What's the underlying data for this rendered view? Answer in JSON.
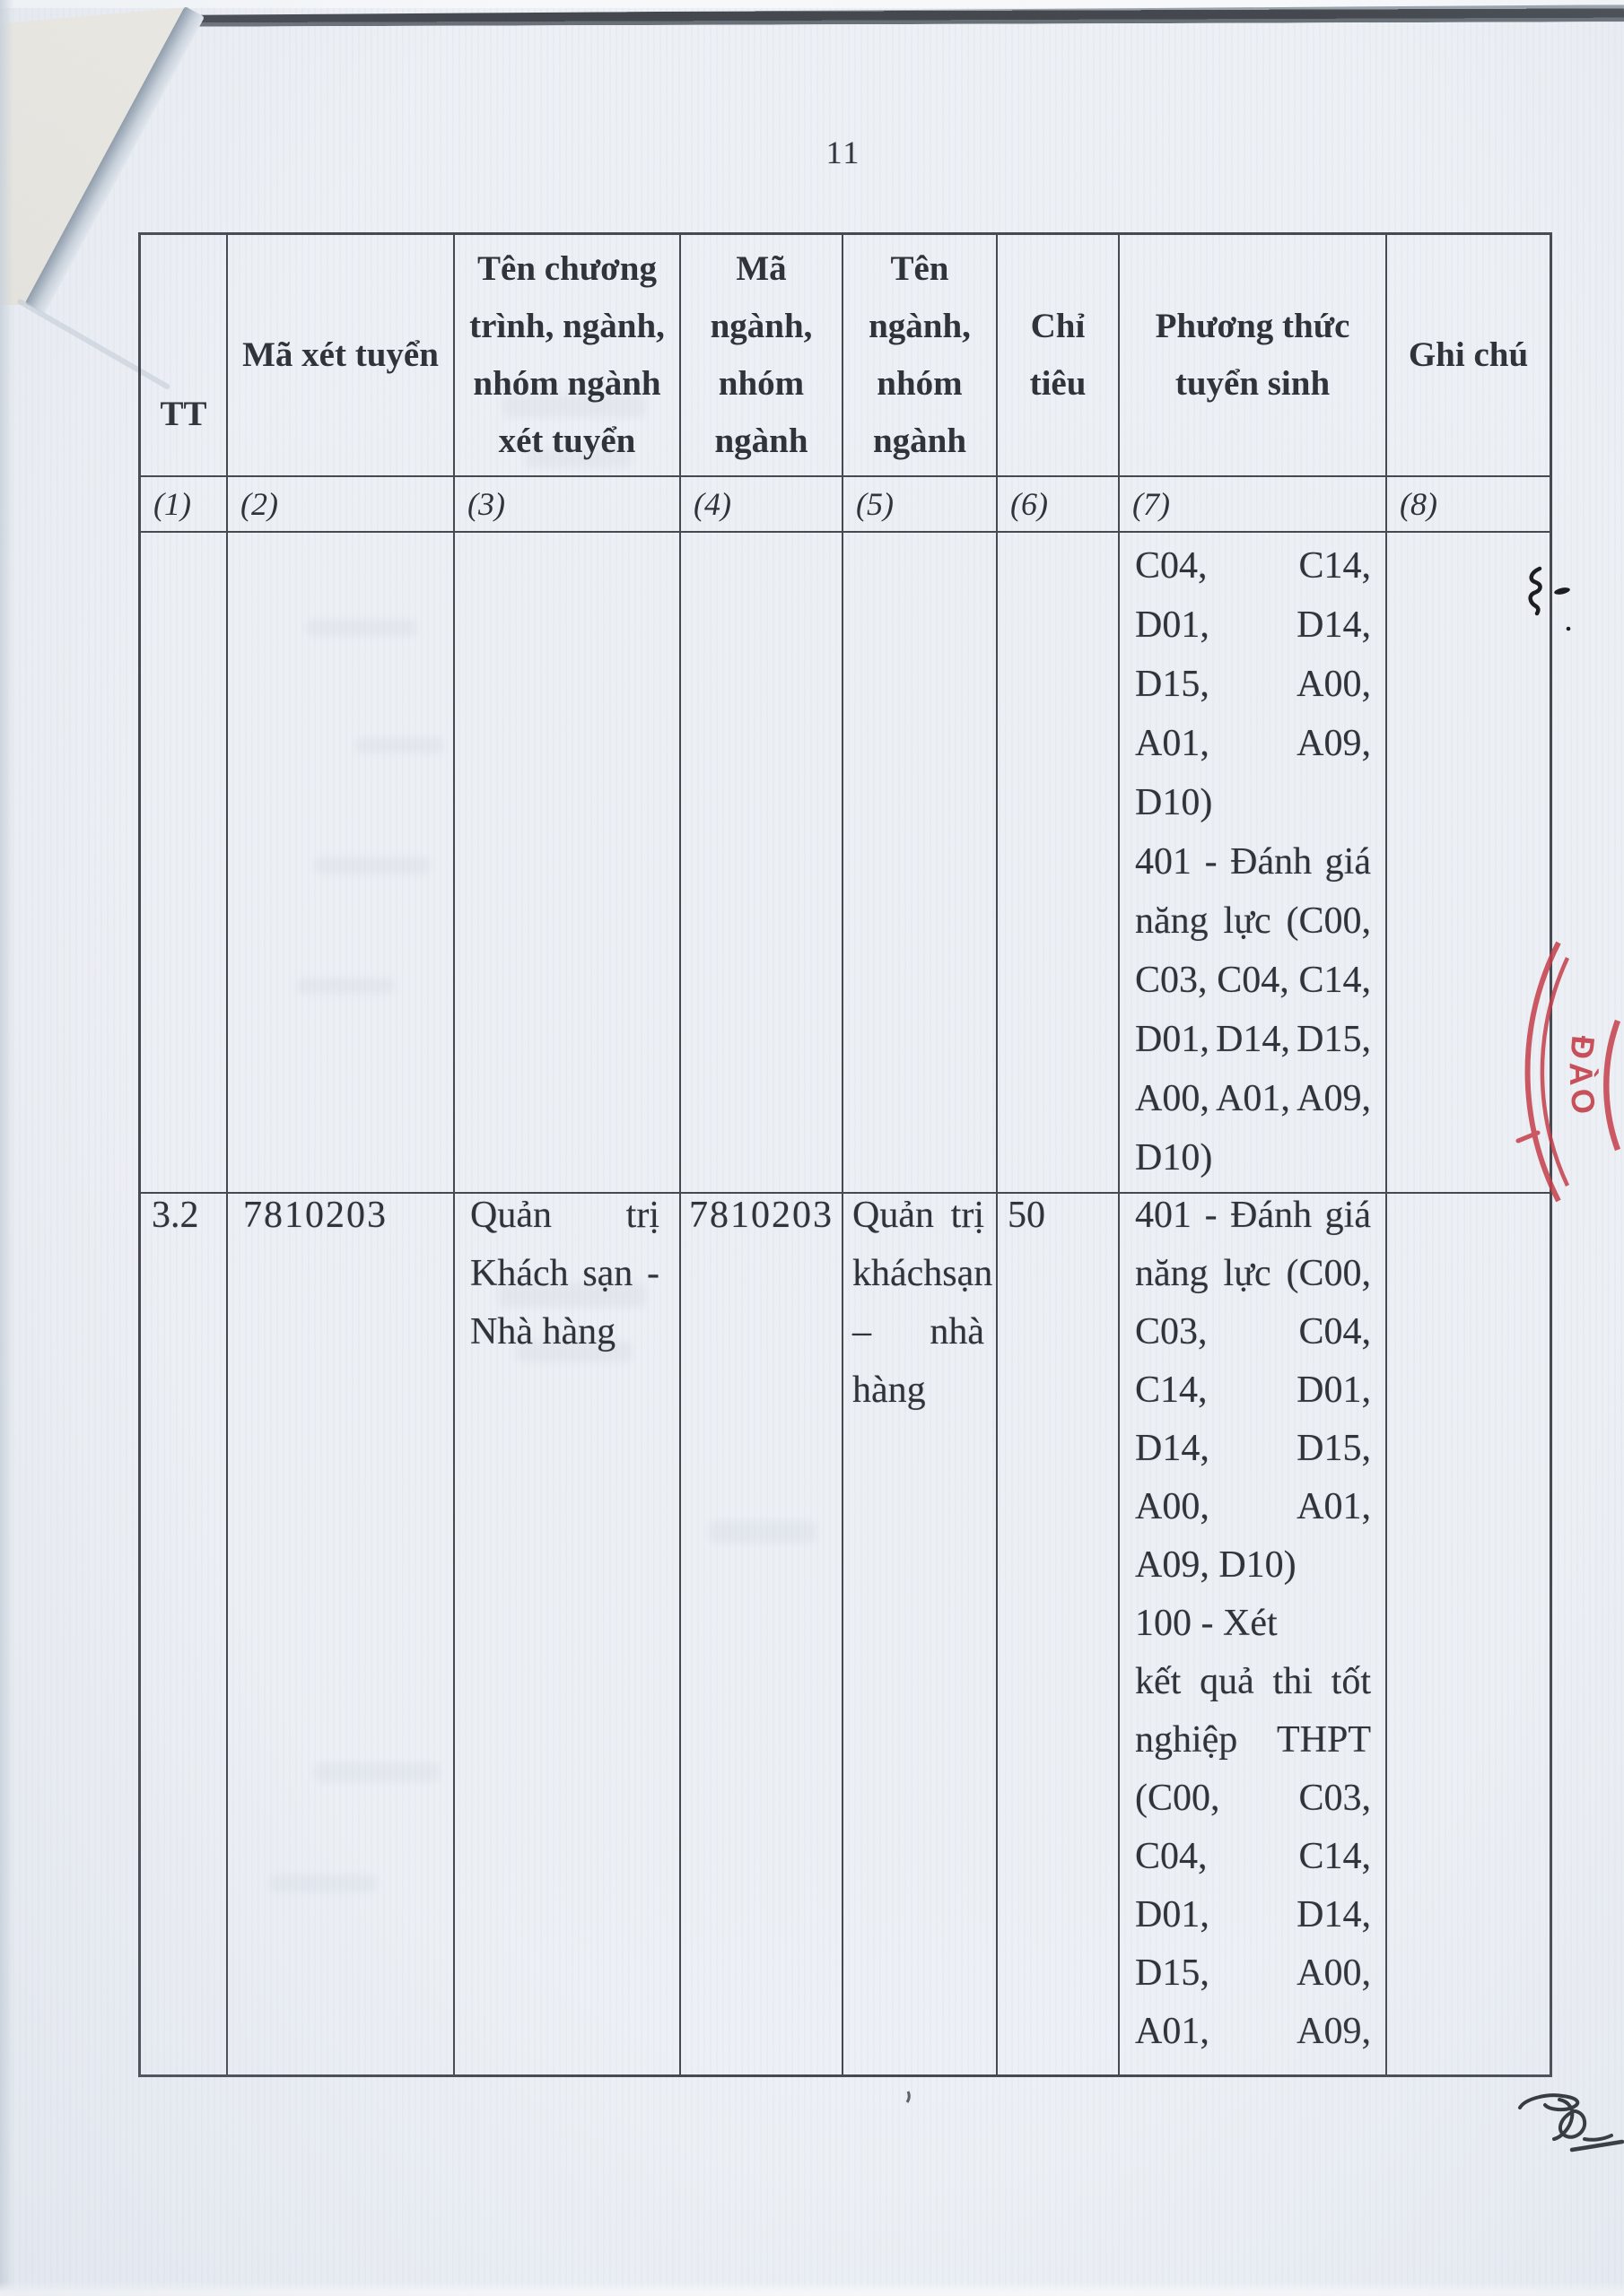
{
  "palette": {
    "paper": "#edf0f5",
    "ink": "#2b2f36",
    "grid_line": "#2a2e36",
    "stamp_red": "#c43b47",
    "fold_cream": "#efece4"
  },
  "page": {
    "number": "11"
  },
  "stamp": {
    "text": "ĐÀO"
  },
  "table": {
    "header": {
      "col1": {
        "lines": [
          "TT"
        ],
        "num": "(1)"
      },
      "col2": {
        "lines": [
          "Mã xét tuyển"
        ],
        "num": "(2)"
      },
      "col3": {
        "lines": [
          "Tên chương",
          "trình, ngành,",
          "nhóm ngành",
          "xét tuyển"
        ],
        "num": "(3)"
      },
      "col4": {
        "lines": [
          "Mã",
          "ngành,",
          "nhóm",
          "ngành"
        ],
        "num": "(4)"
      },
      "col5": {
        "lines": [
          "Tên",
          "ngành,",
          "nhóm",
          "ngành"
        ],
        "num": "(5)"
      },
      "col6": {
        "lines": [
          "Chỉ",
          "tiêu"
        ],
        "num": "(6)"
      },
      "col7": {
        "lines": [
          "Phương thức",
          "tuyển sinh"
        ],
        "num": "(7)"
      },
      "col8": {
        "lines": [
          "Ghi chú"
        ],
        "num": "(8)"
      }
    },
    "rows": [
      {
        "tt": "",
        "ma_xet_tuyen": "",
        "ma_nganh": "",
        "chi_tieu": "",
        "ghi_chu": "",
        "ten_chuong_trinh": [],
        "ten_nganh": [],
        "phuong_thuc": [
          {
            "words": [
              "C04,",
              "C14,"
            ],
            "justify": true
          },
          {
            "words": [
              "D01,",
              "D14,"
            ],
            "justify": true
          },
          {
            "words": [
              "D15,",
              "A00,"
            ],
            "justify": true
          },
          {
            "words": [
              "A01,",
              "A09,"
            ],
            "justify": true
          },
          {
            "words": [
              "D10)"
            ],
            "justify": false
          },
          {
            "words": [
              "401",
              "-",
              "Đánh",
              "giá"
            ],
            "justify": true
          },
          {
            "words": [
              "năng",
              "lực",
              "(C00,"
            ],
            "justify": true
          },
          {
            "words": [
              "C03,",
              "C04,",
              "C14,"
            ],
            "justify": true
          },
          {
            "words": [
              "D01,",
              "D14,",
              "D15,"
            ],
            "justify": true
          },
          {
            "words": [
              "A00,",
              "A01,",
              "A09,"
            ],
            "justify": true
          },
          {
            "words": [
              "D10)"
            ],
            "justify": false
          }
        ]
      },
      {
        "tt": "3.2",
        "ma_xet_tuyen": "7810203",
        "ma_nganh": "7810203",
        "chi_tieu": "50",
        "ghi_chu": "",
        "ten_chuong_trinh": [
          {
            "words": [
              "Quản",
              "trị"
            ],
            "justify": true
          },
          {
            "words": [
              "Khách",
              "sạn",
              "-"
            ],
            "justify": true
          },
          {
            "words": [
              "Nhà hàng"
            ],
            "justify": false
          }
        ],
        "ten_nganh": [
          {
            "words": [
              "Quản",
              "trị"
            ],
            "justify": true
          },
          {
            "words": [
              "khách",
              "sạn"
            ],
            "justify": true
          },
          {
            "words": [
              "–",
              "nhà"
            ],
            "justify": true
          },
          {
            "words": [
              "hàng"
            ],
            "justify": false
          }
        ],
        "phuong_thuc": [
          {
            "words": [
              "401",
              "-",
              "Đánh",
              "giá"
            ],
            "justify": true
          },
          {
            "words": [
              "năng",
              "lực",
              "(C00,"
            ],
            "justify": true
          },
          {
            "words": [
              "C03,",
              "C04,"
            ],
            "justify": true
          },
          {
            "words": [
              "C14,",
              "D01,"
            ],
            "justify": true
          },
          {
            "words": [
              "D14,",
              "D15,"
            ],
            "justify": true
          },
          {
            "words": [
              "A00,",
              "A01,"
            ],
            "justify": true
          },
          {
            "words": [
              "A09,",
              "D10)"
            ],
            "justify": false
          },
          {
            "words": [
              "100",
              "-",
              "Xét"
            ],
            "justify": false
          },
          {
            "words": [
              "kết",
              "quả",
              "thi",
              "tốt"
            ],
            "justify": true
          },
          {
            "words": [
              "nghiệp",
              "THPT"
            ],
            "justify": true
          },
          {
            "words": [
              "(C00,",
              "C03,"
            ],
            "justify": true
          },
          {
            "words": [
              "C04,",
              "C14,"
            ],
            "justify": true
          },
          {
            "words": [
              "D01,",
              "D14,"
            ],
            "justify": true
          },
          {
            "words": [
              "D15,",
              "A00,"
            ],
            "justify": true
          },
          {
            "words": [
              "A01,",
              "A09,"
            ],
            "justify": true
          }
        ]
      }
    ]
  }
}
